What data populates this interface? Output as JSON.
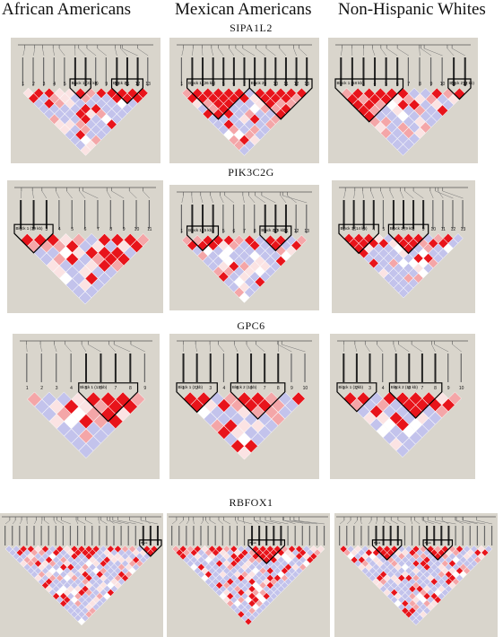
{
  "column_headers": [
    "African Americans",
    "Mexican Americans",
    "Non-Hispanic Whites"
  ],
  "genes": [
    "SIPA1L2",
    "PIK3C2G",
    "GPC6",
    "RBFOX1"
  ],
  "colors": {
    "panel_bg": "#d9d5cc",
    "strong_ld": "#e8141b",
    "moderate_ld": "#f4a6a8",
    "weak_ld": "#fbe3e3",
    "no_ld": "#ffffff",
    "low_lod": "#c3c3ec"
  },
  "panels": [
    {
      "gene": "SIPA1L2",
      "group": "African Americans",
      "snp_count": 13,
      "blocks": [
        {
          "label": "Block 1 (22 kb)",
          "start": 6,
          "end": 7
        },
        {
          "label": "Block 2",
          "start": 10,
          "end": 12
        }
      ],
      "numbers": [
        "1",
        "2",
        "3",
        "4",
        "5",
        "6",
        "7",
        "8",
        "9",
        "10",
        "11",
        "12",
        "13"
      ]
    },
    {
      "gene": "SIPA1L2",
      "group": "Mexican Americans",
      "snp_count": 13,
      "blocks": [
        {
          "label": "Block 1 (26 kb)",
          "start": 2,
          "end": 7
        },
        {
          "label": "Block 2",
          "start": 8,
          "end": 13
        }
      ],
      "numbers": [
        "1",
        "2",
        "3",
        "4",
        "5",
        "6",
        "7",
        "8",
        "9",
        "10",
        "11",
        "12",
        "13"
      ]
    },
    {
      "gene": "SIPA1L2",
      "group": "Non-Hispanic Whites",
      "snp_count": 12,
      "blocks": [
        {
          "label": "Block 1 (18 kb)",
          "start": 1,
          "end": 6
        },
        {
          "label": "Block 2 (2 kb)",
          "start": 11,
          "end": 12
        }
      ],
      "numbers": [
        "1",
        "2",
        "3",
        "4",
        "5",
        "6",
        "7",
        "8",
        "9",
        "10",
        "11",
        "12"
      ]
    },
    {
      "gene": "PIK3C2G",
      "group": "African Americans",
      "snp_count": 11,
      "blocks": [
        {
          "label": "Block 1 (19 kb)",
          "start": 1,
          "end": 3
        }
      ],
      "numbers": [
        "1",
        "2",
        "3",
        "4",
        "5",
        "6",
        "7",
        "8",
        "9",
        "10",
        "11"
      ]
    },
    {
      "gene": "PIK3C2G",
      "group": "Mexican Americans",
      "snp_count": 13,
      "blocks": [
        {
          "label": "Block 1 (5 kb)",
          "start": 2,
          "end": 4
        },
        {
          "label": "Block 2 (5 kb)",
          "start": 9,
          "end": 11
        }
      ],
      "numbers": [
        "1",
        "2",
        "3",
        "4",
        "5",
        "6",
        "7",
        "8",
        "9",
        "10",
        "11",
        "12",
        "13"
      ]
    },
    {
      "gene": "PIK3C2G",
      "group": "Non-Hispanic Whites",
      "snp_count": 13,
      "blocks": [
        {
          "label": "Block 1 (14 kb)",
          "start": 1,
          "end": 4
        },
        {
          "label": "Block 2 (9 kb)",
          "start": 6,
          "end": 9
        }
      ],
      "numbers": [
        "1",
        "2",
        "3",
        "4",
        "5",
        "6",
        "7",
        "8",
        "9",
        "10",
        "11",
        "12",
        "13"
      ]
    },
    {
      "gene": "GPC6",
      "group": "African Americans",
      "snp_count": 9,
      "blocks": [
        {
          "label": "Block 1 (13 kb)",
          "start": 5,
          "end": 8
        }
      ],
      "numbers": [
        "1",
        "2",
        "3",
        "4",
        "5",
        "6",
        "7",
        "8",
        "9"
      ]
    },
    {
      "gene": "GPC6",
      "group": "Mexican Americans",
      "snp_count": 10,
      "blocks": [
        {
          "label": "Block 1 (3 kb)",
          "start": 1,
          "end": 3
        },
        {
          "label": "Block 2 (1 kb)",
          "start": 5,
          "end": 8
        }
      ],
      "numbers": [
        "1",
        "2",
        "3",
        "4",
        "5",
        "6",
        "7",
        "8",
        "9",
        "10"
      ]
    },
    {
      "gene": "GPC6",
      "group": "Non-Hispanic Whites",
      "snp_count": 10,
      "blocks": [
        {
          "label": "Block 1 (3 kb)",
          "start": 1,
          "end": 3
        },
        {
          "label": "Block 2 (13 kb)",
          "start": 5,
          "end": 8
        }
      ],
      "numbers": [
        "1",
        "2",
        "3",
        "4",
        "5",
        "6",
        "7",
        "8",
        "9",
        "10"
      ]
    },
    {
      "gene": "RBFOX1",
      "group": "African Americans",
      "snp_count": 22,
      "blocks": [
        {
          "label": "Block",
          "start": 20,
          "end": 22
        }
      ],
      "numbers": []
    },
    {
      "gene": "RBFOX1",
      "group": "Mexican Americans",
      "snp_count": 22,
      "blocks": [
        {
          "label": "Block",
          "start": 12,
          "end": 16
        }
      ],
      "numbers": []
    },
    {
      "gene": "RBFOX1",
      "group": "Non-Hispanic Whites",
      "snp_count": 22,
      "blocks": [
        {
          "label": "Block",
          "start": 6,
          "end": 9
        },
        {
          "label": "Block",
          "start": 13,
          "end": 16
        }
      ],
      "numbers": []
    }
  ]
}
